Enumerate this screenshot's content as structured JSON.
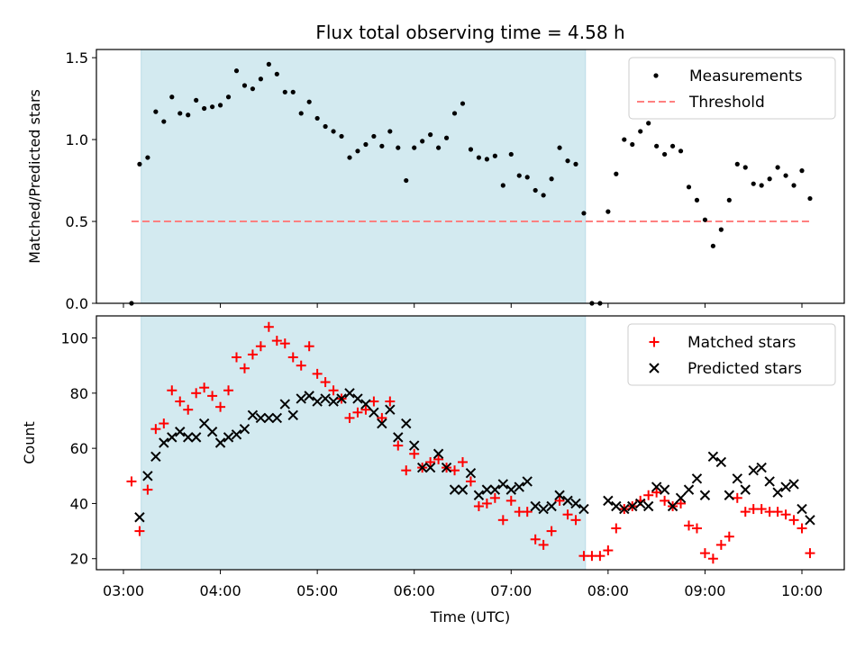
{
  "chart_data": [
    {
      "type": "scatter",
      "title": "Flux total observing time = 4.58 h",
      "xlabel": "",
      "ylabel": "Matched/Predicted stars",
      "ylim": [
        0,
        1.55
      ],
      "yticks": [
        "0.0",
        "0.5",
        "1.0",
        "1.5"
      ],
      "shaded_span": [
        "03:11",
        "07:46"
      ],
      "shade_color": "#d3eaf0",
      "series": [
        {
          "name": "Measurements",
          "marker": "dot",
          "color": "#000000",
          "points": [
            [
              "03:05",
              0.0
            ],
            [
              "03:10",
              0.85
            ],
            [
              "03:15",
              0.89
            ],
            [
              "03:20",
              1.17
            ],
            [
              "03:25",
              1.11
            ],
            [
              "03:30",
              1.26
            ],
            [
              "03:35",
              1.16
            ],
            [
              "03:40",
              1.15
            ],
            [
              "03:45",
              1.24
            ],
            [
              "03:50",
              1.19
            ],
            [
              "03:55",
              1.2
            ],
            [
              "04:00",
              1.21
            ],
            [
              "04:05",
              1.26
            ],
            [
              "04:10",
              1.42
            ],
            [
              "04:15",
              1.33
            ],
            [
              "04:20",
              1.31
            ],
            [
              "04:25",
              1.37
            ],
            [
              "04:30",
              1.46
            ],
            [
              "04:35",
              1.4
            ],
            [
              "04:40",
              1.29
            ],
            [
              "04:45",
              1.29
            ],
            [
              "04:50",
              1.16
            ],
            [
              "04:55",
              1.23
            ],
            [
              "05:00",
              1.13
            ],
            [
              "05:05",
              1.08
            ],
            [
              "05:10",
              1.05
            ],
            [
              "05:15",
              1.02
            ],
            [
              "05:20",
              0.89
            ],
            [
              "05:25",
              0.93
            ],
            [
              "05:30",
              0.97
            ],
            [
              "05:35",
              1.02
            ],
            [
              "05:40",
              0.96
            ],
            [
              "05:45",
              1.05
            ],
            [
              "05:50",
              0.95
            ],
            [
              "05:55",
              0.75
            ],
            [
              "06:00",
              0.95
            ],
            [
              "06:05",
              0.99
            ],
            [
              "06:10",
              1.03
            ],
            [
              "06:15",
              0.95
            ],
            [
              "06:20",
              1.01
            ],
            [
              "06:25",
              1.16
            ],
            [
              "06:30",
              1.22
            ],
            [
              "06:35",
              0.94
            ],
            [
              "06:40",
              0.89
            ],
            [
              "06:45",
              0.88
            ],
            [
              "06:50",
              0.9
            ],
            [
              "06:55",
              0.72
            ],
            [
              "07:00",
              0.91
            ],
            [
              "07:05",
              0.78
            ],
            [
              "07:10",
              0.77
            ],
            [
              "07:15",
              0.69
            ],
            [
              "07:20",
              0.66
            ],
            [
              "07:25",
              0.76
            ],
            [
              "07:30",
              0.95
            ],
            [
              "07:35",
              0.87
            ],
            [
              "07:40",
              0.85
            ],
            [
              "07:45",
              0.55
            ],
            [
              "07:50",
              0.0
            ],
            [
              "07:55",
              0.0
            ],
            [
              "08:00",
              0.56
            ],
            [
              "08:05",
              0.79
            ],
            [
              "08:10",
              1.0
            ],
            [
              "08:15",
              0.97
            ],
            [
              "08:20",
              1.05
            ],
            [
              "08:25",
              1.1
            ],
            [
              "08:30",
              0.96
            ],
            [
              "08:35",
              0.91
            ],
            [
              "08:40",
              0.96
            ],
            [
              "08:45",
              0.93
            ],
            [
              "08:50",
              0.71
            ],
            [
              "08:55",
              0.63
            ],
            [
              "09:00",
              0.51
            ],
            [
              "09:05",
              0.35
            ],
            [
              "09:10",
              0.45
            ],
            [
              "09:15",
              0.63
            ],
            [
              "09:20",
              0.85
            ],
            [
              "09:25",
              0.83
            ],
            [
              "09:30",
              0.73
            ],
            [
              "09:35",
              0.72
            ],
            [
              "09:40",
              0.76
            ],
            [
              "09:45",
              0.83
            ],
            [
              "09:50",
              0.78
            ],
            [
              "09:55",
              0.72
            ],
            [
              "10:00",
              0.81
            ],
            [
              "10:05",
              0.64
            ]
          ]
        },
        {
          "name": "Threshold",
          "marker": "dashed-line",
          "color": "#ff8080",
          "x_range": [
            "03:05",
            "10:05"
          ],
          "value": 0.5
        }
      ]
    },
    {
      "type": "scatter",
      "title": "",
      "xlabel": "Time (UTC)",
      "ylabel": "Count",
      "ylim": [
        16,
        108
      ],
      "yticks": [
        "20",
        "40",
        "60",
        "80",
        "100"
      ],
      "xticks": [
        "03:00",
        "04:00",
        "05:00",
        "06:00",
        "07:00",
        "08:00",
        "09:00",
        "10:00"
      ],
      "shaded_span": [
        "03:11",
        "07:46"
      ],
      "shade_color": "#d3eaf0",
      "series": [
        {
          "name": "Matched stars",
          "marker": "plus",
          "color": "#ff0000",
          "points": [
            [
              "03:05",
              48
            ],
            [
              "03:10",
              30
            ],
            [
              "03:15",
              45
            ],
            [
              "03:20",
              67
            ],
            [
              "03:25",
              69
            ],
            [
              "03:30",
              81
            ],
            [
              "03:35",
              77
            ],
            [
              "03:40",
              74
            ],
            [
              "03:45",
              80
            ],
            [
              "03:50",
              82
            ],
            [
              "03:55",
              79
            ],
            [
              "04:00",
              75
            ],
            [
              "04:05",
              81
            ],
            [
              "04:10",
              93
            ],
            [
              "04:15",
              89
            ],
            [
              "04:20",
              94
            ],
            [
              "04:25",
              97
            ],
            [
              "04:30",
              104
            ],
            [
              "04:35",
              99
            ],
            [
              "04:40",
              98
            ],
            [
              "04:45",
              93
            ],
            [
              "04:50",
              90
            ],
            [
              "04:55",
              97
            ],
            [
              "05:00",
              87
            ],
            [
              "05:05",
              84
            ],
            [
              "05:10",
              81
            ],
            [
              "05:15",
              78
            ],
            [
              "05:20",
              71
            ],
            [
              "05:25",
              73
            ],
            [
              "05:30",
              74
            ],
            [
              "05:35",
              77
            ],
            [
              "05:40",
              71
            ],
            [
              "05:45",
              77
            ],
            [
              "05:50",
              61
            ],
            [
              "05:55",
              52
            ],
            [
              "06:00",
              58
            ],
            [
              "06:05",
              53
            ],
            [
              "06:10",
              55
            ],
            [
              "06:15",
              56
            ],
            [
              "06:20",
              53
            ],
            [
              "06:25",
              52
            ],
            [
              "06:30",
              55
            ],
            [
              "06:35",
              48
            ],
            [
              "06:40",
              39
            ],
            [
              "06:45",
              40
            ],
            [
              "06:50",
              42
            ],
            [
              "06:55",
              34
            ],
            [
              "07:00",
              41
            ],
            [
              "07:05",
              37
            ],
            [
              "07:10",
              37
            ],
            [
              "07:15",
              27
            ],
            [
              "07:20",
              25
            ],
            [
              "07:25",
              30
            ],
            [
              "07:30",
              41
            ],
            [
              "07:35",
              36
            ],
            [
              "07:40",
              34
            ],
            [
              "07:45",
              21
            ],
            [
              "07:50",
              21
            ],
            [
              "07:55",
              21
            ],
            [
              "08:00",
              23
            ],
            [
              "08:05",
              31
            ],
            [
              "08:10",
              38
            ],
            [
              "08:15",
              39
            ],
            [
              "08:20",
              41
            ],
            [
              "08:25",
              43
            ],
            [
              "08:30",
              44
            ],
            [
              "08:35",
              41
            ],
            [
              "08:40",
              39
            ],
            [
              "08:45",
              40
            ],
            [
              "08:50",
              32
            ],
            [
              "08:55",
              31
            ],
            [
              "09:00",
              22
            ],
            [
              "09:05",
              20
            ],
            [
              "09:10",
              25
            ],
            [
              "09:15",
              28
            ],
            [
              "09:20",
              42
            ],
            [
              "09:25",
              37
            ],
            [
              "09:30",
              38
            ],
            [
              "09:35",
              38
            ],
            [
              "09:40",
              37
            ],
            [
              "09:45",
              37
            ],
            [
              "09:50",
              36
            ],
            [
              "09:55",
              34
            ],
            [
              "10:00",
              31
            ],
            [
              "10:05",
              22
            ]
          ]
        },
        {
          "name": "Predicted stars",
          "marker": "x",
          "color": "#000000",
          "points": [
            [
              "03:10",
              35
            ],
            [
              "03:15",
              50
            ],
            [
              "03:20",
              57
            ],
            [
              "03:25",
              62
            ],
            [
              "03:30",
              64
            ],
            [
              "03:35",
              66
            ],
            [
              "03:40",
              64
            ],
            [
              "03:45",
              64
            ],
            [
              "03:50",
              69
            ],
            [
              "03:55",
              66
            ],
            [
              "04:00",
              62
            ],
            [
              "04:05",
              64
            ],
            [
              "04:10",
              65
            ],
            [
              "04:15",
              67
            ],
            [
              "04:20",
              72
            ],
            [
              "04:25",
              71
            ],
            [
              "04:30",
              71
            ],
            [
              "04:35",
              71
            ],
            [
              "04:40",
              76
            ],
            [
              "04:45",
              72
            ],
            [
              "04:50",
              78
            ],
            [
              "04:55",
              79
            ],
            [
              "05:00",
              77
            ],
            [
              "05:05",
              78
            ],
            [
              "05:10",
              77
            ],
            [
              "05:15",
              78
            ],
            [
              "05:20",
              80
            ],
            [
              "05:25",
              78
            ],
            [
              "05:30",
              76
            ],
            [
              "05:35",
              73
            ],
            [
              "05:40",
              69
            ],
            [
              "05:45",
              74
            ],
            [
              "05:50",
              64
            ],
            [
              "05:55",
              69
            ],
            [
              "06:00",
              61
            ],
            [
              "06:05",
              53
            ],
            [
              "06:10",
              53
            ],
            [
              "06:15",
              58
            ],
            [
              "06:20",
              53
            ],
            [
              "06:25",
              45
            ],
            [
              "06:30",
              45
            ],
            [
              "06:35",
              51
            ],
            [
              "06:40",
              43
            ],
            [
              "06:45",
              45
            ],
            [
              "06:50",
              45
            ],
            [
              "06:55",
              47
            ],
            [
              "07:00",
              45
            ],
            [
              "07:05",
              46
            ],
            [
              "07:10",
              48
            ],
            [
              "07:15",
              39
            ],
            [
              "07:20",
              38
            ],
            [
              "07:25",
              39
            ],
            [
              "07:30",
              43
            ],
            [
              "07:35",
              41
            ],
            [
              "07:40",
              40
            ],
            [
              "07:45",
              38
            ],
            [
              "08:00",
              41
            ],
            [
              "08:05",
              39
            ],
            [
              "08:10",
              38
            ],
            [
              "08:15",
              39
            ],
            [
              "08:20",
              40
            ],
            [
              "08:25",
              39
            ],
            [
              "08:30",
              46
            ],
            [
              "08:35",
              45
            ],
            [
              "08:40",
              39
            ],
            [
              "08:45",
              42
            ],
            [
              "08:50",
              45
            ],
            [
              "08:55",
              49
            ],
            [
              "09:00",
              43
            ],
            [
              "09:05",
              57
            ],
            [
              "09:10",
              55
            ],
            [
              "09:15",
              43
            ],
            [
              "09:20",
              49
            ],
            [
              "09:25",
              45
            ],
            [
              "09:30",
              52
            ],
            [
              "09:35",
              53
            ],
            [
              "09:40",
              48
            ],
            [
              "09:45",
              44
            ],
            [
              "09:50",
              46
            ],
            [
              "09:55",
              47
            ],
            [
              "10:00",
              38
            ],
            [
              "10:05",
              34
            ]
          ]
        }
      ]
    }
  ]
}
